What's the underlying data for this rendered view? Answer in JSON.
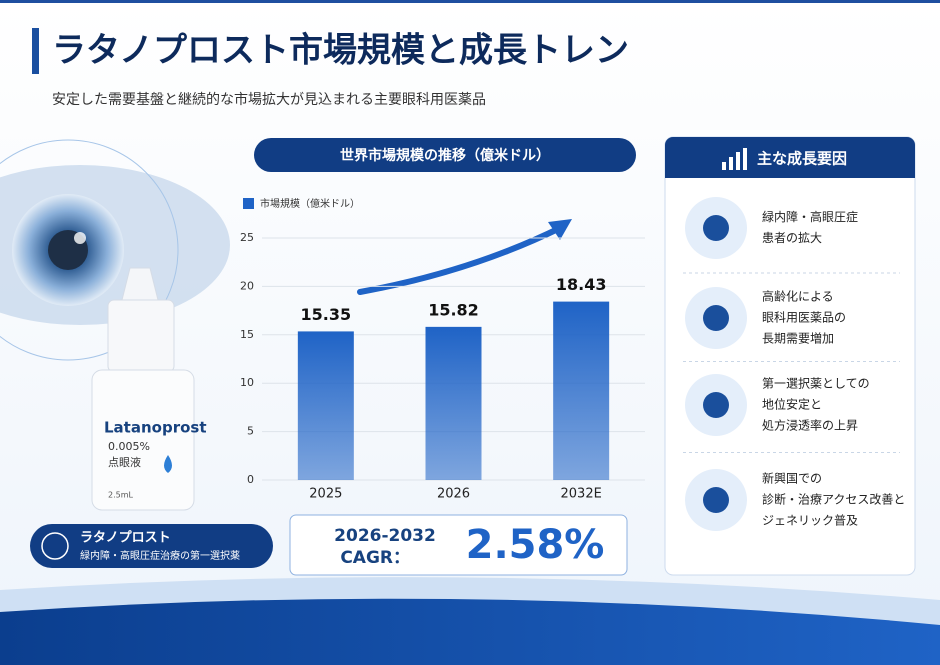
{
  "header": {
    "title": "ラタノプロスト市場規模と成長トレン",
    "subtitle": "安定した需要基盤と継続的な市場拡大が見込まれる主要眼科用医薬品"
  },
  "product": {
    "brand": "Latanoprost",
    "strength": "0.005%",
    "form": "点眼液",
    "volume": "2.5mL",
    "badge_title": "ラタノプロスト",
    "badge_text": "緑内障・高眼圧症治療の第一選択薬"
  },
  "chart_data": {
    "type": "bar",
    "title": "世界市場規模の推移（億米ドル）",
    "legend": "市場規模（億米ドル）",
    "categories": [
      "2025",
      "2026",
      "2032E"
    ],
    "values": [
      15.35,
      15.82,
      18.43
    ],
    "color": "#1f63c6",
    "ylim": [
      0,
      25
    ],
    "yticks": [
      0,
      5,
      10,
      15,
      20,
      25
    ],
    "grid": true
  },
  "cagr": {
    "period": "2026-2032",
    "label": "CAGR：",
    "value": "2.58%"
  },
  "factors": {
    "title": "主な成長要因",
    "items": [
      {
        "lines": [
          "緑内障・高眼圧症",
          "患者の拡大"
        ]
      },
      {
        "lines": [
          "高齢化による",
          "眼科用医薬品の",
          "長期需要増加"
        ]
      },
      {
        "lines": [
          "第一選択薬としての",
          "地位安定と",
          "処方浸透率の上昇"
        ]
      },
      {
        "lines": [
          "新興国での",
          "診断・治療アクセス改善と",
          "ジェネリック普及"
        ]
      }
    ]
  }
}
